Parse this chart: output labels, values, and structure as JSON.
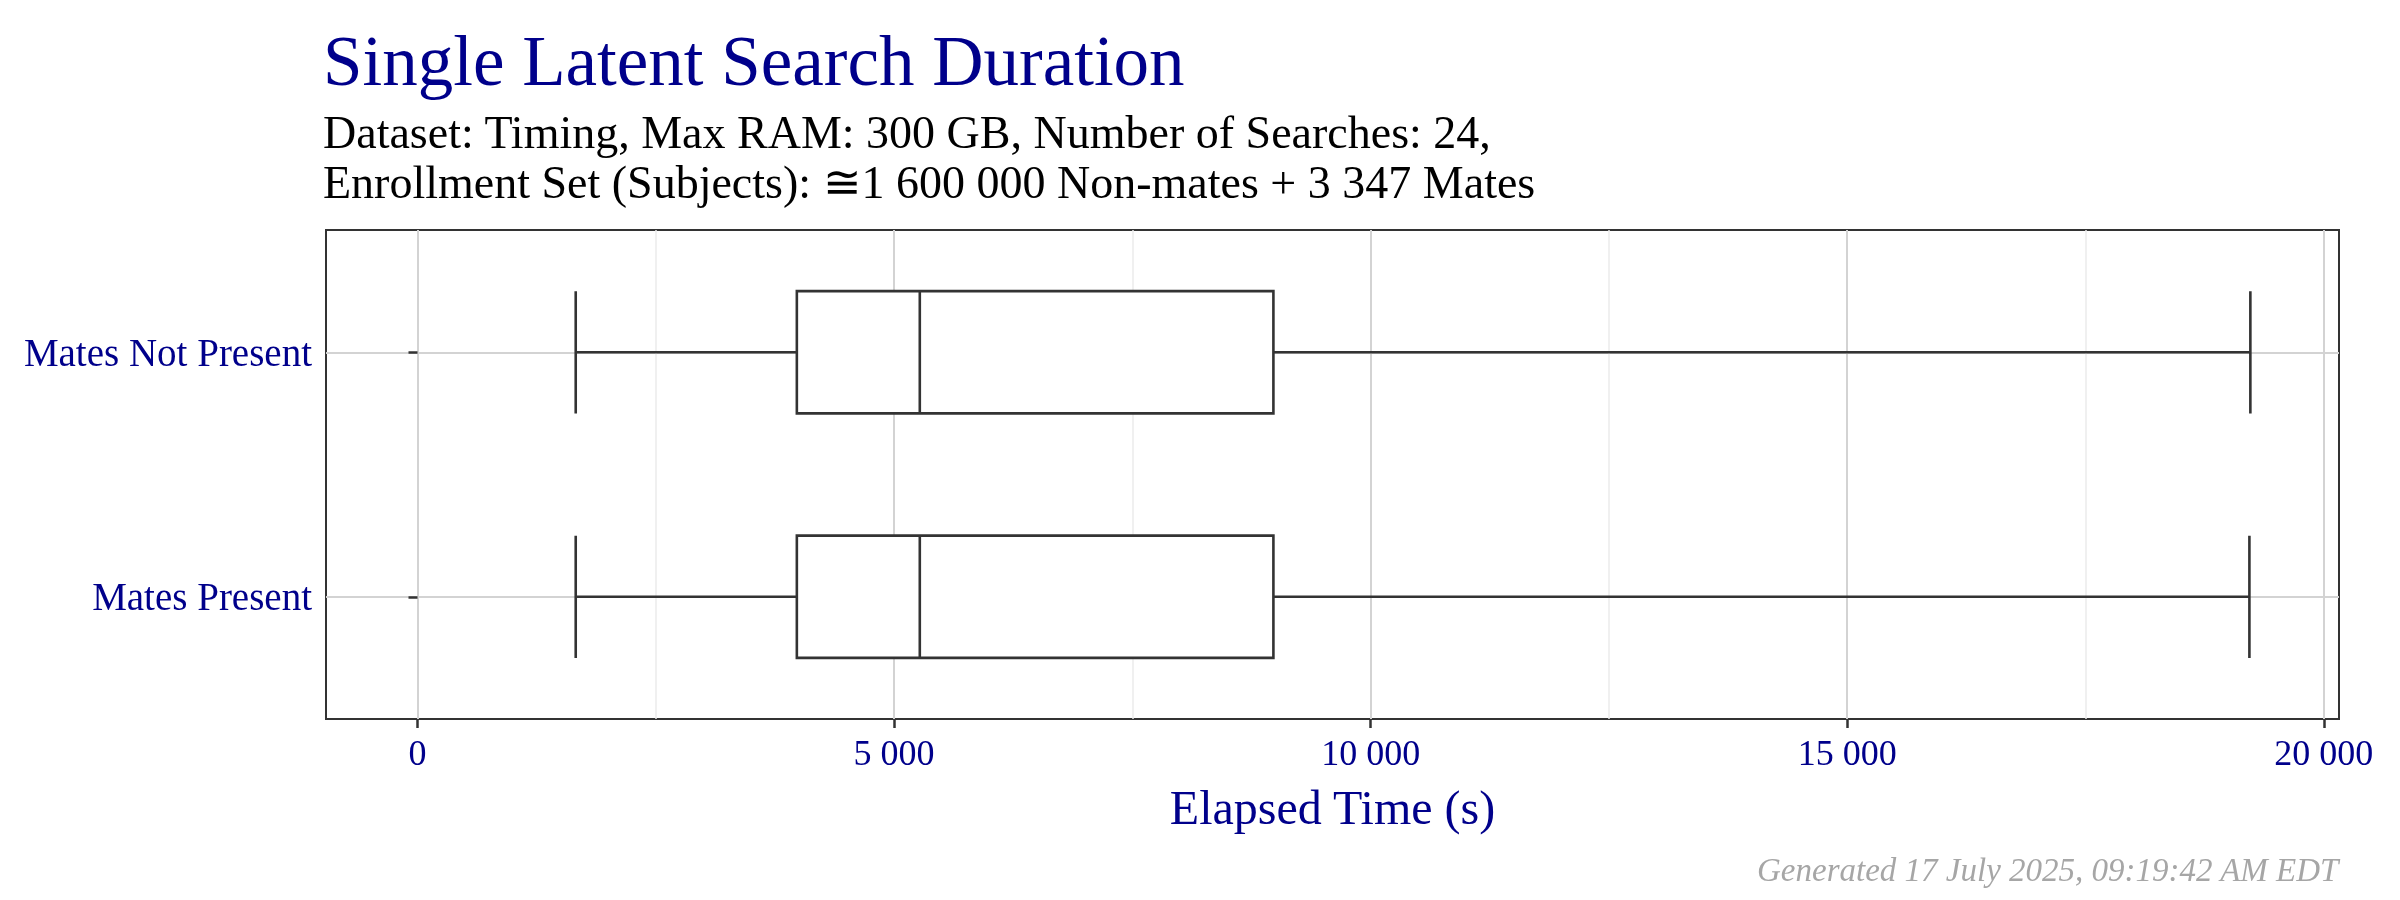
{
  "chart_data": {
    "type": "box",
    "orientation": "horizontal",
    "title": "Single Latent Search Duration",
    "subtitle": "Dataset: Timing, Max RAM: 300 GB, Number of Searches: 24,\nEnrollment Set (Subjects): ≅1 600 000 Non-mates + 3 347 Mates",
    "xlabel": "Elapsed Time (s)",
    "annotations": [
      "Generated 17 July 2025, 09:19:42 AM EDT"
    ],
    "categories": [
      "Mates Not Present",
      "Mates Present"
    ],
    "boxes": [
      {
        "low": 1660,
        "q1": 3980,
        "median": 5270,
        "q3": 8980,
        "high": 19230
      },
      {
        "low": 1660,
        "q1": 3980,
        "median": 5270,
        "q3": 8980,
        "high": 19220
      }
    ],
    "color": "#333333",
    "xlim": [
      -960,
      20160
    ],
    "xticks": [
      0,
      {
        "value": 5000,
        "label": "5 000"
      },
      {
        "value": 10000,
        "label": "10 000"
      },
      {
        "value": 15000,
        "label": "15 000"
      },
      {
        "value": 20000,
        "label": "20 000"
      }
    ],
    "grid": true
  }
}
